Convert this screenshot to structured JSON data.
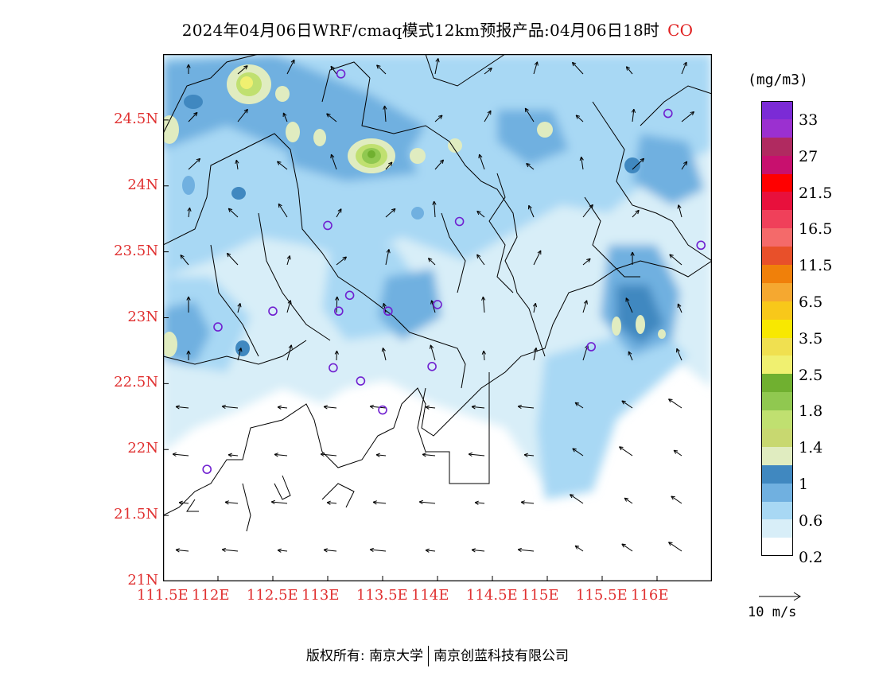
{
  "title": {
    "text": "2024年04月06日WRF/cmaq模式12km预报产品:04月06日18时",
    "species": "CO"
  },
  "map": {
    "lon_range": [
      111.5,
      116.5
    ],
    "lat_range": [
      21.0,
      25.0
    ],
    "x_ticks": [
      "111.5E",
      "112E",
      "112.5E",
      "113E",
      "113.5E",
      "114E",
      "114.5E",
      "115E",
      "115.5E",
      "116E"
    ],
    "x_tick_values": [
      111.5,
      112.0,
      112.5,
      113.0,
      113.5,
      114.0,
      114.5,
      115.0,
      115.5,
      116.0
    ],
    "y_ticks": [
      "21N",
      "21.5N",
      "22N",
      "22.5N",
      "23N",
      "23.5N",
      "24N",
      "24.5N"
    ],
    "y_tick_values": [
      21.0,
      21.5,
      22.0,
      22.5,
      23.0,
      23.5,
      24.0,
      24.5
    ],
    "stations": [
      [
        113.12,
        24.85
      ],
      [
        116.1,
        24.55
      ],
      [
        113.0,
        23.7
      ],
      [
        114.2,
        23.73
      ],
      [
        116.4,
        23.55
      ],
      [
        113.2,
        23.17
      ],
      [
        112.5,
        23.05
      ],
      [
        113.1,
        23.05
      ],
      [
        113.55,
        23.05
      ],
      [
        114.0,
        23.1
      ],
      [
        112.0,
        22.93
      ],
      [
        115.4,
        22.78
      ],
      [
        113.05,
        22.62
      ],
      [
        113.3,
        22.52
      ],
      [
        113.95,
        22.63
      ],
      [
        113.5,
        22.3
      ],
      [
        111.9,
        21.85
      ]
    ]
  },
  "colorbar": {
    "unit": "(mg/m3)",
    "colors": [
      "#7b2bd6",
      "#9b30d0",
      "#b02a60",
      "#c8106e",
      "#ff0000",
      "#e8103c",
      "#f0405a",
      "#f46a6a",
      "#e8502a",
      "#f0800a",
      "#f5a830",
      "#f8c81a",
      "#f8e800",
      "#f0e050",
      "#f0f070",
      "#70b030",
      "#90c850",
      "#c0e070",
      "#c8d870",
      "#e0ecc0",
      "#4088c0",
      "#70b0e0",
      "#a8d8f4",
      "#d8eef8",
      "#ffffff"
    ],
    "labels": [
      "33",
      "27",
      "21.5",
      "16.5",
      "11.5",
      "6.5",
      "3.5",
      "2.5",
      "1.8",
      "1.4",
      "1",
      "0.6",
      "0.2"
    ]
  },
  "vector_reference": {
    "label": "10 m/s"
  },
  "copyright": {
    "left": "版权所有: 南京大学",
    "right": "南京创蓝科技有限公司"
  }
}
